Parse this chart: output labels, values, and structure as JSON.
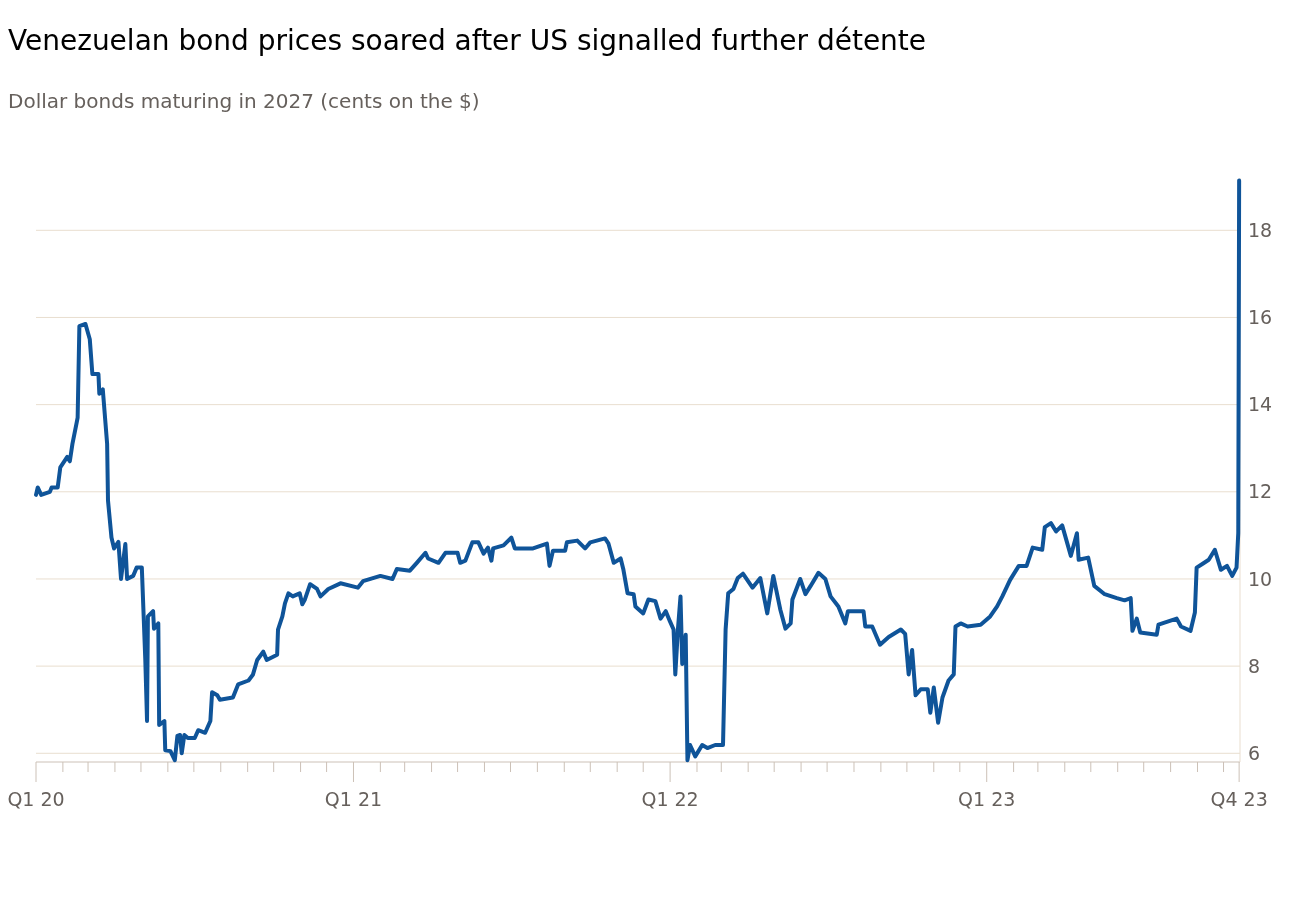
{
  "chart_data": {
    "type": "line",
    "title": "Venezuelan bond prices soared after US signalled further détente",
    "subtitle": "Dollar bonds maturing in 2027 (cents on the $)",
    "x": [
      "2020-01-01",
      "2020-01-03",
      "2020-01-07",
      "2020-01-17",
      "2020-01-19",
      "2020-01-26",
      "2020-01-29",
      "2020-02-06",
      "2020-02-09",
      "2020-02-12",
      "2020-02-17",
      "2020-02-18",
      "2020-02-20",
      "2020-02-27",
      "2020-03-03",
      "2020-03-06",
      "2020-03-13",
      "2020-03-14",
      "2020-03-18",
      "2020-03-23",
      "2020-03-24",
      "2020-03-28",
      "2020-03-31",
      "2020-04-05",
      "2020-04-08",
      "2020-04-13",
      "2020-04-15",
      "2020-04-22",
      "2020-04-26",
      "2020-05-02",
      "2020-05-06",
      "2020-05-08",
      "2020-05-09",
      "2020-05-15",
      "2020-05-16",
      "2020-05-21",
      "2020-05-22",
      "2020-05-28",
      "2020-05-29",
      "2020-06-04",
      "2020-06-09",
      "2020-06-12",
      "2020-06-15",
      "2020-06-17",
      "2020-06-20",
      "2020-06-24",
      "2020-07-02",
      "2020-07-06",
      "2020-07-14",
      "2020-07-20",
      "2020-07-22",
      "2020-07-28",
      "2020-07-31",
      "2020-08-15",
      "2020-08-21",
      "2020-09-02",
      "2020-09-07",
      "2020-09-12",
      "2020-09-19",
      "2020-09-23",
      "2020-10-05",
      "2020-10-06",
      "2020-10-11",
      "2020-10-14",
      "2020-10-18",
      "2020-10-23",
      "2020-10-31",
      "2020-11-03",
      "2020-11-06",
      "2020-11-12",
      "2020-11-20",
      "2020-11-24",
      "2020-12-03",
      "2020-12-17",
      "2021-01-06",
      "2021-01-12",
      "2021-02-01",
      "2021-02-15",
      "2021-02-20",
      "2021-03-07",
      "2021-03-15",
      "2021-03-25",
      "2021-03-28",
      "2021-04-09",
      "2021-04-17",
      "2021-05-01",
      "2021-05-04",
      "2021-05-10",
      "2021-05-18",
      "2021-05-25",
      "2021-05-31",
      "2021-06-05",
      "2021-06-09",
      "2021-06-11",
      "2021-06-23",
      "2021-07-02",
      "2021-07-06",
      "2021-07-27",
      "2021-08-12",
      "2021-08-15",
      "2021-08-19",
      "2021-09-02",
      "2021-09-04",
      "2021-09-16",
      "2021-09-25",
      "2021-10-01",
      "2021-10-18",
      "2021-10-22",
      "2021-10-28",
      "2021-11-05",
      "2021-11-08",
      "2021-11-13",
      "2021-11-20",
      "2021-11-22",
      "2021-12-01",
      "2021-12-07",
      "2021-12-15",
      "2021-12-21",
      "2021-12-27",
      "2022-01-01",
      "2022-01-05",
      "2022-01-07",
      "2022-01-10",
      "2022-01-13",
      "2022-01-15",
      "2022-01-19",
      "2022-01-21",
      "2022-01-24",
      "2022-01-30",
      "2022-02-07",
      "2022-02-13",
      "2022-02-22",
      "2022-03-03",
      "2022-03-06",
      "2022-03-09",
      "2022-03-15",
      "2022-03-20",
      "2022-03-26",
      "2022-04-06",
      "2022-04-15",
      "2022-04-23",
      "2022-04-30",
      "2022-05-08",
      "2022-05-14",
      "2022-05-20",
      "2022-05-22",
      "2022-05-31",
      "2022-06-06",
      "2022-06-12",
      "2022-06-21",
      "2022-06-29",
      "2022-07-05",
      "2022-07-14",
      "2022-07-22",
      "2022-07-25",
      "2022-08-12",
      "2022-08-14",
      "2022-08-22",
      "2022-08-31",
      "2022-09-10",
      "2022-09-24",
      "2022-09-29",
      "2022-10-03",
      "2022-10-07",
      "2022-10-11",
      "2022-10-17",
      "2022-10-25",
      "2022-10-28",
      "2022-11-01",
      "2022-11-06",
      "2022-11-11",
      "2022-11-18",
      "2022-11-24",
      "2022-11-26",
      "2022-12-02",
      "2022-12-10",
      "2022-12-25",
      "2023-01-05",
      "2023-01-13",
      "2023-01-19",
      "2023-01-28",
      "2023-02-07",
      "2023-02-16",
      "2023-02-23",
      "2023-03-06",
      "2023-03-09",
      "2023-03-16",
      "2023-03-22",
      "2023-03-29",
      "2023-04-08",
      "2023-04-15",
      "2023-04-17",
      "2023-04-28",
      "2023-05-05",
      "2023-05-17",
      "2023-05-31",
      "2023-06-09",
      "2023-06-16",
      "2023-06-18",
      "2023-06-23",
      "2023-06-27",
      "2023-07-16",
      "2023-07-18",
      "2023-08-08",
      "2023-08-13",
      "2023-08-24",
      "2023-08-29",
      "2023-08-31",
      "2023-09-07",
      "2023-09-14",
      "2023-09-21",
      "2023-09-28",
      "2023-10-05",
      "2023-10-11",
      "2023-10-16",
      "2023-10-18",
      "2023-10-19"
    ],
    "series": [
      {
        "color": "#0f5499",
        "values": [
          11.93,
          12.1,
          11.93,
          12.0,
          12.1,
          12.1,
          12.56,
          12.8,
          12.7,
          13.1,
          13.6,
          13.7,
          15.8,
          15.85,
          15.5,
          14.7,
          14.7,
          14.25,
          14.35,
          13.1,
          11.8,
          10.95,
          10.7,
          10.85,
          10.0,
          10.8,
          10.0,
          10.07,
          10.26,
          10.26,
          8.14,
          6.74,
          9.14,
          9.26,
          8.86,
          8.98,
          6.65,
          6.74,
          6.07,
          6.05,
          5.84,
          6.4,
          6.42,
          6.0,
          6.42,
          6.35,
          6.35,
          6.53,
          6.47,
          6.74,
          7.4,
          7.33,
          7.23,
          7.28,
          7.58,
          7.67,
          7.8,
          8.14,
          8.33,
          8.14,
          8.26,
          8.84,
          9.14,
          9.44,
          9.67,
          9.6,
          9.67,
          9.42,
          9.53,
          9.88,
          9.77,
          9.6,
          9.77,
          9.9,
          9.8,
          9.95,
          10.07,
          10.0,
          10.23,
          10.19,
          10.37,
          10.6,
          10.47,
          10.37,
          10.6,
          10.6,
          10.37,
          10.42,
          10.84,
          10.84,
          10.58,
          10.72,
          10.42,
          10.7,
          10.77,
          10.95,
          10.7,
          10.7,
          10.81,
          10.3,
          10.65,
          10.65,
          10.84,
          10.88,
          10.7,
          10.84,
          10.93,
          10.81,
          10.37,
          10.47,
          10.23,
          9.67,
          9.65,
          9.37,
          9.21,
          9.53,
          9.49,
          9.09,
          9.26,
          9.02,
          8.84,
          7.81,
          8.84,
          9.6,
          8.05,
          8.72,
          5.84,
          6.19,
          5.93,
          6.19,
          6.12,
          6.19,
          6.19,
          8.84,
          9.67,
          9.77,
          10.02,
          10.12,
          9.8,
          10.02,
          9.21,
          10.07,
          9.3,
          8.86,
          8.98,
          9.53,
          10.0,
          9.65,
          9.84,
          10.14,
          10.0,
          9.6,
          9.37,
          8.98,
          9.26,
          9.26,
          8.91,
          8.91,
          8.49,
          8.67,
          8.84,
          8.74,
          7.81,
          8.37,
          7.33,
          7.47,
          7.47,
          6.93,
          7.51,
          6.7,
          7.28,
          7.67,
          7.81,
          8.91,
          8.98,
          8.91,
          8.95,
          9.14,
          9.37,
          9.6,
          9.98,
          10.3,
          10.3,
          10.72,
          10.67,
          11.19,
          11.28,
          11.09,
          11.23,
          10.53,
          11.05,
          10.44,
          10.49,
          9.84,
          9.65,
          9.56,
          9.51,
          9.56,
          8.81,
          9.09,
          8.77,
          8.72,
          8.95,
          9.09,
          8.91,
          8.81,
          9.23,
          10.26,
          10.35,
          10.44,
          10.67,
          10.21,
          10.3,
          10.07,
          10.26,
          11.05,
          19.14
        ]
      }
    ],
    "xlim": [
      "2020-01-01",
      "2023-10-20"
    ],
    "xticks": [
      {
        "value": "2020-01-01",
        "label": "Q1 20"
      },
      {
        "value": "2020-02-01",
        "label": null
      },
      {
        "value": "2020-03-01",
        "label": null
      },
      {
        "value": "2020-04-01",
        "label": null
      },
      {
        "value": "2020-05-01",
        "label": null
      },
      {
        "value": "2020-06-01",
        "label": null
      },
      {
        "value": "2020-07-01",
        "label": null
      },
      {
        "value": "2020-08-01",
        "label": null
      },
      {
        "value": "2020-09-01",
        "label": null
      },
      {
        "value": "2020-10-01",
        "label": null
      },
      {
        "value": "2020-11-01",
        "label": null
      },
      {
        "value": "2020-12-01",
        "label": null
      },
      {
        "value": "2021-01-01",
        "label": "Q1 21"
      },
      {
        "value": "2021-02-01",
        "label": null
      },
      {
        "value": "2021-03-01",
        "label": null
      },
      {
        "value": "2021-04-01",
        "label": null
      },
      {
        "value": "2021-05-01",
        "label": null
      },
      {
        "value": "2021-06-01",
        "label": null
      },
      {
        "value": "2021-07-01",
        "label": null
      },
      {
        "value": "2021-08-01",
        "label": null
      },
      {
        "value": "2021-09-01",
        "label": null
      },
      {
        "value": "2021-10-01",
        "label": null
      },
      {
        "value": "2021-11-01",
        "label": null
      },
      {
        "value": "2021-12-01",
        "label": null
      },
      {
        "value": "2022-01-01",
        "label": "Q1 22"
      },
      {
        "value": "2022-02-01",
        "label": null
      },
      {
        "value": "2022-03-01",
        "label": null
      },
      {
        "value": "2022-04-01",
        "label": null
      },
      {
        "value": "2022-05-01",
        "label": null
      },
      {
        "value": "2022-06-01",
        "label": null
      },
      {
        "value": "2022-07-01",
        "label": null
      },
      {
        "value": "2022-08-01",
        "label": null
      },
      {
        "value": "2022-09-01",
        "label": null
      },
      {
        "value": "2022-10-01",
        "label": null
      },
      {
        "value": "2022-11-01",
        "label": null
      },
      {
        "value": "2022-12-01",
        "label": null
      },
      {
        "value": "2023-01-01",
        "label": "Q1 23"
      },
      {
        "value": "2023-02-01",
        "label": null
      },
      {
        "value": "2023-03-01",
        "label": null
      },
      {
        "value": "2023-04-01",
        "label": null
      },
      {
        "value": "2023-05-01",
        "label": null
      },
      {
        "value": "2023-06-01",
        "label": null
      },
      {
        "value": "2023-07-01",
        "label": null
      },
      {
        "value": "2023-08-01",
        "label": null
      },
      {
        "value": "2023-09-01",
        "label": null
      },
      {
        "value": "2023-10-01",
        "label": null
      },
      {
        "value": "2023-10-19",
        "label": "Q4 23"
      }
    ],
    "ylim": [
      5.8,
      19.2
    ],
    "yticks": [
      6,
      8,
      10,
      12,
      14,
      16,
      18
    ],
    "grid": "y"
  }
}
